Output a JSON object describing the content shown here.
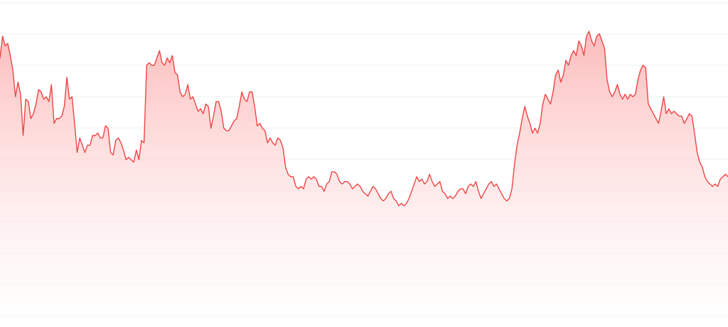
{
  "chart_data": {
    "type": "area",
    "title": "",
    "xlabel": "",
    "ylabel": "",
    "grid": true,
    "legend": "none",
    "ylim": [
      0,
      100
    ],
    "gridlines": [
      0,
      10,
      20,
      30,
      40,
      50,
      60,
      70,
      80,
      90,
      100
    ],
    "colors": {
      "line": "#ef4444",
      "fill_top": "#fca5a5",
      "fill_bottom": "#ffffff",
      "grid": "#f2f2f2"
    },
    "series": [
      {
        "name": "",
        "values": [
          89,
          98,
          94,
          95,
          90,
          84,
          73,
          79,
          74,
          57,
          72,
          71,
          64,
          66,
          70,
          76,
          75,
          72,
          73,
          71,
          78,
          62,
          64,
          64,
          65,
          69,
          81,
          72,
          73,
          62,
          50,
          56,
          53,
          50,
          53,
          53,
          57,
          57,
          58,
          56,
          56,
          61,
          60,
          50,
          49,
          55,
          56,
          54,
          51,
          47,
          48,
          47,
          46,
          51,
          47,
          55,
          54,
          86,
          87,
          86,
          86,
          89,
          92,
          87,
          86,
          89,
          87,
          90,
          83,
          82,
          75,
          73,
          74,
          78,
          72,
          73,
          70,
          67,
          68,
          66,
          70,
          69,
          60,
          65,
          71,
          71,
          67,
          60,
          59,
          59,
          61,
          63,
          64,
          69,
          75,
          72,
          71,
          75,
          75,
          69,
          61,
          62,
          60,
          59,
          54,
          56,
          54,
          53,
          56,
          55,
          52,
          44,
          41,
          40,
          40,
          36,
          35,
          36,
          35,
          39,
          40,
          39,
          40,
          39,
          36,
          36,
          34,
          37,
          38,
          42,
          42,
          41,
          38,
          37,
          38,
          38,
          37,
          35,
          36,
          37,
          36,
          34,
          33,
          32,
          34,
          36,
          35,
          33,
          31,
          30,
          31,
          33,
          34,
          31,
          30,
          28,
          29,
          28,
          29,
          31,
          34,
          37,
          40,
          38,
          39,
          37,
          38,
          41,
          38,
          36,
          37,
          38,
          34,
          33,
          31,
          32,
          31,
          32,
          34,
          35,
          35,
          33,
          36,
          37,
          36,
          38,
          34,
          31,
          33,
          35,
          37,
          38,
          36,
          37,
          35,
          33,
          31,
          30,
          31,
          35,
          45,
          53,
          58,
          64,
          69,
          65,
          62,
          58,
          60,
          58,
          62,
          70,
          74,
          72,
          70,
          75,
          82,
          84,
          79,
          82,
          88,
          86,
          90,
          92,
          90,
          96,
          94,
          90,
          98,
          100,
          96,
          94,
          98,
          99,
          96,
          93,
          80,
          75,
          73,
          75,
          78,
          74,
          72,
          74,
          72,
          74,
          73,
          74,
          80,
          84,
          86,
          85,
          70,
          68,
          66,
          64,
          62,
          67,
          73,
          66,
          68,
          66,
          67,
          66,
          65,
          65,
          62,
          64,
          66,
          65,
          58,
          50,
          46,
          44,
          40,
          38,
          37,
          36,
          37,
          36,
          39,
          40,
          41,
          40
        ]
      }
    ]
  }
}
